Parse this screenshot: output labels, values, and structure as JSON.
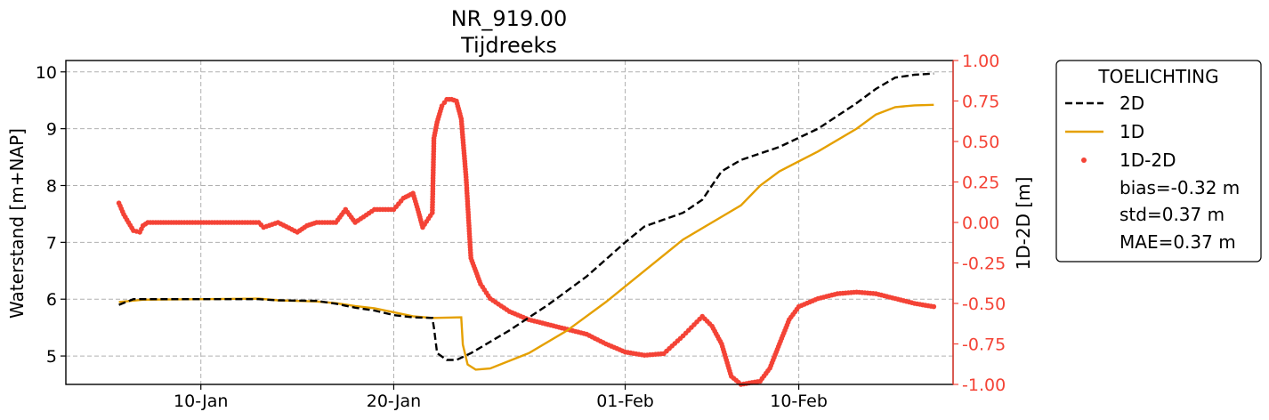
{
  "chart_data": {
    "type": "line",
    "title": "NR_919.00",
    "subtitle": "Tijdreeks",
    "ylabel": "Waterstand [m+NAP]",
    "y2label": "1D-2D [m]",
    "ylim": [
      4.5,
      10.2
    ],
    "y2lim": [
      -1.0,
      1.0
    ],
    "xlim": [
      "2024-01-03",
      "2024-02-18"
    ],
    "xticks": [
      {
        "date": "2024-01-10",
        "label": "10-Jan"
      },
      {
        "date": "2024-01-20",
        "label": "20-Jan"
      },
      {
        "date": "2024-02-01",
        "label": "01-Feb"
      },
      {
        "date": "2024-02-10",
        "label": "10-Feb"
      }
    ],
    "yticks": [
      5,
      6,
      7,
      8,
      9,
      10
    ],
    "y2ticks": [
      "-1.00",
      "-0.75",
      "-0.50",
      "-0.25",
      "0.00",
      "0.25",
      "0.50",
      "0.75",
      "1.00"
    ],
    "grid": true,
    "legend_position": "outside-right",
    "legend_title": "TOELICHTING",
    "colors": {
      "2D": "#000000",
      "1D": "#e5a000",
      "1D-2D": "#f44336",
      "grid": "#b0b0b0"
    },
    "series": [
      {
        "name": "2D",
        "axis": "left",
        "style": "dashed",
        "points": [
          [
            "2024-01-05T18:00",
            5.9
          ],
          [
            "2024-01-06T12:00",
            6.0
          ],
          [
            "2024-01-08",
            6.0
          ],
          [
            "2024-01-11",
            6.0
          ],
          [
            "2024-01-13",
            6.0
          ],
          [
            "2024-01-14",
            5.98
          ],
          [
            "2024-01-16",
            5.97
          ],
          [
            "2024-01-17",
            5.92
          ],
          [
            "2024-01-18",
            5.85
          ],
          [
            "2024-01-19",
            5.8
          ],
          [
            "2024-01-20",
            5.72
          ],
          [
            "2024-01-21",
            5.68
          ],
          [
            "2024-01-22T00:00",
            5.67
          ],
          [
            "2024-01-22T02:00",
            5.5
          ],
          [
            "2024-01-22T06:00",
            5.05
          ],
          [
            "2024-01-22T18:00",
            4.93
          ],
          [
            "2024-01-23T06:00",
            4.93
          ],
          [
            "2024-01-24",
            5.05
          ],
          [
            "2024-01-26",
            5.45
          ],
          [
            "2024-01-28",
            5.9
          ],
          [
            "2024-01-30",
            6.4
          ],
          [
            "2024-02-01",
            7.0
          ],
          [
            "2024-02-02",
            7.28
          ],
          [
            "2024-02-03",
            7.4
          ],
          [
            "2024-02-04",
            7.52
          ],
          [
            "2024-02-05",
            7.75
          ],
          [
            "2024-02-06",
            8.25
          ],
          [
            "2024-02-07",
            8.45
          ],
          [
            "2024-02-09",
            8.68
          ],
          [
            "2024-02-11",
            9.0
          ],
          [
            "2024-02-13",
            9.45
          ],
          [
            "2024-02-14",
            9.7
          ],
          [
            "2024-02-15",
            9.9
          ],
          [
            "2024-02-16",
            9.95
          ],
          [
            "2024-02-17",
            9.97
          ]
        ]
      },
      {
        "name": "1D",
        "axis": "left",
        "style": "solid",
        "points": [
          [
            "2024-01-05T18:00",
            5.95
          ],
          [
            "2024-01-07",
            5.99
          ],
          [
            "2024-01-10",
            6.0
          ],
          [
            "2024-01-13",
            6.01
          ],
          [
            "2024-01-14",
            5.98
          ],
          [
            "2024-01-16",
            5.96
          ],
          [
            "2024-01-17",
            5.93
          ],
          [
            "2024-01-18",
            5.88
          ],
          [
            "2024-01-19",
            5.84
          ],
          [
            "2024-01-20",
            5.77
          ],
          [
            "2024-01-21",
            5.7
          ],
          [
            "2024-01-22",
            5.67
          ],
          [
            "2024-01-23T12:00",
            5.68
          ],
          [
            "2024-01-23T14:00",
            5.2
          ],
          [
            "2024-01-23T20:00",
            4.85
          ],
          [
            "2024-01-24T06:00",
            4.76
          ],
          [
            "2024-01-25",
            4.78
          ],
          [
            "2024-01-27",
            5.05
          ],
          [
            "2024-01-29",
            5.45
          ],
          [
            "2024-01-31",
            5.95
          ],
          [
            "2024-02-02",
            6.5
          ],
          [
            "2024-02-04",
            7.05
          ],
          [
            "2024-02-06",
            7.45
          ],
          [
            "2024-02-07",
            7.65
          ],
          [
            "2024-02-08",
            8.0
          ],
          [
            "2024-02-09",
            8.25
          ],
          [
            "2024-02-11",
            8.6
          ],
          [
            "2024-02-13",
            9.0
          ],
          [
            "2024-02-14",
            9.25
          ],
          [
            "2024-02-15",
            9.38
          ],
          [
            "2024-02-16",
            9.41
          ],
          [
            "2024-02-17",
            9.42
          ]
        ]
      },
      {
        "name": "1D-2D",
        "axis": "right",
        "style": "markers",
        "points": [
          [
            "2024-01-05T18:00",
            0.12
          ],
          [
            "2024-01-06",
            0.05
          ],
          [
            "2024-01-06T06:00",
            0.0
          ],
          [
            "2024-01-06T12:00",
            -0.05
          ],
          [
            "2024-01-06T20:00",
            -0.06
          ],
          [
            "2024-01-07",
            -0.02
          ],
          [
            "2024-01-07T06:00",
            0.0
          ],
          [
            "2024-01-09",
            0.0
          ],
          [
            "2024-01-11",
            0.0
          ],
          [
            "2024-01-13",
            0.0
          ],
          [
            "2024-01-13T06:00",
            -0.03
          ],
          [
            "2024-01-14",
            0.0
          ],
          [
            "2024-01-15",
            -0.06
          ],
          [
            "2024-01-15T12:00",
            -0.02
          ],
          [
            "2024-01-16",
            0.0
          ],
          [
            "2024-01-17",
            0.0
          ],
          [
            "2024-01-17T12:00",
            0.08
          ],
          [
            "2024-01-18",
            0.0
          ],
          [
            "2024-01-19",
            0.08
          ],
          [
            "2024-01-20",
            0.08
          ],
          [
            "2024-01-20T12:00",
            0.15
          ],
          [
            "2024-01-21",
            0.18
          ],
          [
            "2024-01-21T06:00",
            0.08
          ],
          [
            "2024-01-21T12:00",
            -0.03
          ],
          [
            "2024-01-22",
            0.06
          ],
          [
            "2024-01-22T02:00",
            0.52
          ],
          [
            "2024-01-22T06:00",
            0.62
          ],
          [
            "2024-01-22T12:00",
            0.72
          ],
          [
            "2024-01-22T18:00",
            0.76
          ],
          [
            "2024-01-23",
            0.76
          ],
          [
            "2024-01-23T06:00",
            0.75
          ],
          [
            "2024-01-23T12:00",
            0.64
          ],
          [
            "2024-01-23T18:00",
            0.28
          ],
          [
            "2024-01-24",
            -0.22
          ],
          [
            "2024-01-24T12:00",
            -0.38
          ],
          [
            "2024-01-25",
            -0.47
          ],
          [
            "2024-01-26",
            -0.55
          ],
          [
            "2024-01-27",
            -0.6
          ],
          [
            "2024-01-28",
            -0.63
          ],
          [
            "2024-01-29",
            -0.66
          ],
          [
            "2024-01-30",
            -0.69
          ],
          [
            "2024-01-31",
            -0.75
          ],
          [
            "2024-02-01",
            -0.8
          ],
          [
            "2024-02-02",
            -0.82
          ],
          [
            "2024-02-03",
            -0.81
          ],
          [
            "2024-02-04",
            -0.7
          ],
          [
            "2024-02-05",
            -0.58
          ],
          [
            "2024-02-05T12:00",
            -0.64
          ],
          [
            "2024-02-06",
            -0.75
          ],
          [
            "2024-02-06T12:00",
            -0.95
          ],
          [
            "2024-02-07",
            -1.0
          ],
          [
            "2024-02-08",
            -0.98
          ],
          [
            "2024-02-08T12:00",
            -0.9
          ],
          [
            "2024-02-09",
            -0.75
          ],
          [
            "2024-02-09T12:00",
            -0.6
          ],
          [
            "2024-02-10",
            -0.52
          ],
          [
            "2024-02-11",
            -0.47
          ],
          [
            "2024-02-12",
            -0.44
          ],
          [
            "2024-02-13",
            -0.43
          ],
          [
            "2024-02-14",
            -0.44
          ],
          [
            "2024-02-15",
            -0.47
          ],
          [
            "2024-02-16",
            -0.5
          ],
          [
            "2024-02-17",
            -0.52
          ]
        ]
      }
    ],
    "legend_entries": [
      {
        "label": "2D",
        "marker": "dashed-line"
      },
      {
        "label": "1D",
        "marker": "solid-line"
      },
      {
        "label": "1D-2D",
        "marker": "dot"
      },
      {
        "label": "bias=-0.32 m",
        "marker": "none"
      },
      {
        "label": "std=0.37 m",
        "marker": "none"
      },
      {
        "label": "MAE=0.37 m",
        "marker": "none"
      }
    ]
  }
}
